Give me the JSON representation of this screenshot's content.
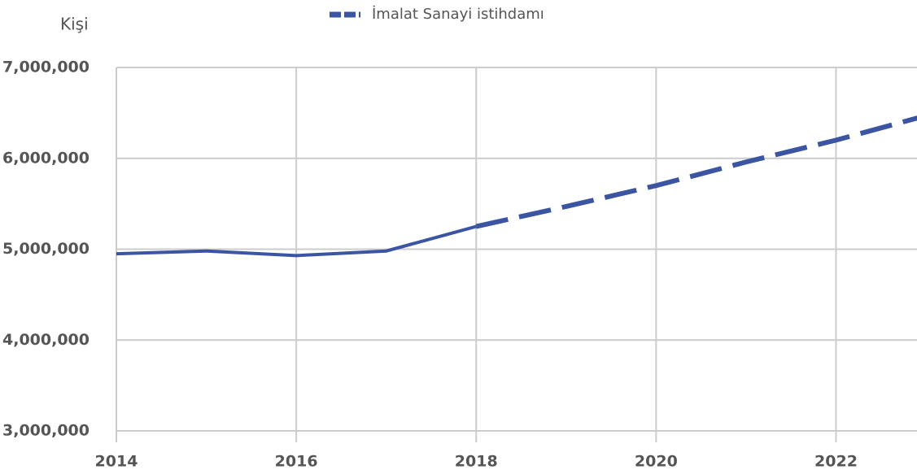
{
  "chart_data": {
    "type": "line",
    "y_label": "Kişi",
    "x": [
      2014,
      2015,
      2016,
      2017,
      2018,
      2019,
      2020,
      2021,
      2022,
      2023
    ],
    "series": [
      {
        "name": "İmalat Sanayi istihdamı",
        "color": "#3b55a3",
        "values": [
          4950000,
          4980000,
          4930000,
          4980000,
          5250000,
          5470000,
          5700000,
          5960000,
          6200000,
          6470000
        ]
      }
    ],
    "projection_start": 2018,
    "xlim": [
      2014,
      2022.9
    ],
    "xticks": [
      2014,
      2016,
      2018,
      2020,
      2022
    ],
    "ylim": [
      3000000,
      7000000
    ],
    "yticks": [
      {
        "value": 3000000,
        "label": "3,000,000"
      },
      {
        "value": 4000000,
        "label": "4,000,000"
      },
      {
        "value": 5000000,
        "label": "5,000,000"
      },
      {
        "value": 6000000,
        "label": "6,000,000"
      },
      {
        "value": 7000000,
        "label": "7,000,000"
      }
    ],
    "grid": true
  }
}
